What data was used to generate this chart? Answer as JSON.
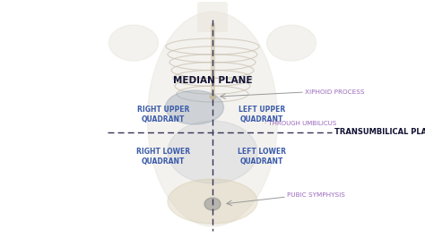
{
  "bg_color": "#ffffff",
  "median_plane_label": "MEDIAN PLANE",
  "transumbilical_label": "TRANSUMBILICAL PLANE",
  "xiphoid_label": "XIPHOID PROCESS",
  "umbilicus_label": "· THROUGH UMBILICUS",
  "pubic_label": "PUBIC SYMPHYSIS",
  "right_upper_label": "RIGHT UPPER\nQUADRANT",
  "left_upper_label": "LEFT UPPER\nQUADRANT",
  "right_lower_label": "RIGHT LOWER\nQUADRANT",
  "left_lower_label": "LEFT LOWER\nQUADRANT",
  "quadrant_color": "#3a5baa",
  "label_color_purple": "#9966bb",
  "transumb_label_color": "#111133",
  "median_label_color": "#111133",
  "line_color": "#333355",
  "arrow_color": "#999999",
  "body_fill": "#e8e4db",
  "rib_color": "#c8c0b0",
  "organ_color": "#b0b8c8"
}
